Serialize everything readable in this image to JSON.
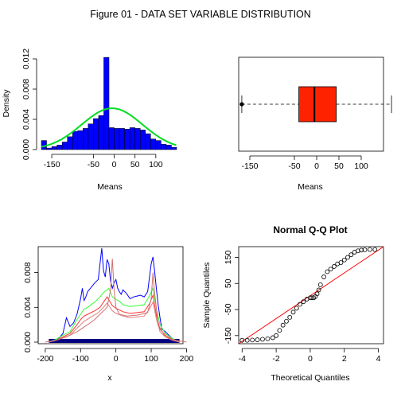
{
  "figure_title": "Figure 01 - DATA SET VARIABLE DISTRIBUTION",
  "chart_data": [
    {
      "type": "histogram",
      "xlabel": "Means",
      "ylabel": "Density",
      "xlim": [
        -175,
        150
      ],
      "ylim": [
        0,
        0.012
      ],
      "xticks": [
        -150,
        -50,
        0,
        50,
        100
      ],
      "yticks": [
        0,
        0.004,
        0.008,
        0.012
      ],
      "ytick_labels": [
        "0.000",
        "0.004",
        "0.008",
        "0.012"
      ],
      "bins": [
        {
          "x0": -175,
          "x1": -162.5,
          "density": 0.0012
        },
        {
          "x0": -162.5,
          "x1": -150,
          "density": 0.0002
        },
        {
          "x0": -150,
          "x1": -137.5,
          "density": 0.0004
        },
        {
          "x0": -137.5,
          "x1": -125,
          "density": 0.0006
        },
        {
          "x0": -125,
          "x1": -112.5,
          "density": 0.001
        },
        {
          "x0": -112.5,
          "x1": -100,
          "density": 0.0017
        },
        {
          "x0": -100,
          "x1": -87.5,
          "density": 0.0024
        },
        {
          "x0": -87.5,
          "x1": -75,
          "density": 0.0025
        },
        {
          "x0": -75,
          "x1": -62.5,
          "density": 0.0028
        },
        {
          "x0": -62.5,
          "x1": -50,
          "density": 0.0034
        },
        {
          "x0": -50,
          "x1": -37.5,
          "density": 0.0041
        },
        {
          "x0": -37.5,
          "x1": -25,
          "density": 0.0045
        },
        {
          "x0": -25,
          "x1": -12.5,
          "density": 0.0122
        },
        {
          "x0": -12.5,
          "x1": 0,
          "density": 0.0029
        },
        {
          "x0": 0,
          "x1": 12.5,
          "density": 0.0028
        },
        {
          "x0": 12.5,
          "x1": 25,
          "density": 0.0028
        },
        {
          "x0": 25,
          "x1": 37.5,
          "density": 0.0027
        },
        {
          "x0": 37.5,
          "x1": 50,
          "density": 0.0029
        },
        {
          "x0": 50,
          "x1": 62.5,
          "density": 0.0028
        },
        {
          "x0": 62.5,
          "x1": 75,
          "density": 0.0026
        },
        {
          "x0": 75,
          "x1": 87.5,
          "density": 0.0021
        },
        {
          "x0": 87.5,
          "x1": 100,
          "density": 0.0014
        },
        {
          "x0": 100,
          "x1": 112.5,
          "density": 0.0012
        },
        {
          "x0": 112.5,
          "x1": 125,
          "density": 0.0007
        },
        {
          "x0": 125,
          "x1": 137.5,
          "density": 0.0006
        },
        {
          "x0": 137.5,
          "x1": 150,
          "density": 0.0003
        }
      ],
      "normal_curve": {
        "mean": -5,
        "sd": 73
      },
      "colors": {
        "bars": "#0000ff",
        "curve": "#00dd22"
      }
    },
    {
      "type": "boxplot",
      "xlabel": "Means",
      "xlim": [
        -175,
        150
      ],
      "xticks": [
        -150,
        -50,
        0,
        50,
        100
      ],
      "whisker_low": -168,
      "q1": -40,
      "median": -5,
      "q3": 44,
      "whisker_high": 168,
      "outliers": [
        -168
      ],
      "colors": {
        "box": "#ff2200"
      }
    },
    {
      "type": "line",
      "xlabel": "x",
      "xlim": [
        -220,
        190
      ],
      "ylim": [
        0,
        0.0108
      ],
      "xticks": [
        -200,
        -100,
        0,
        100,
        200
      ],
      "yticks": [
        0,
        0.004,
        0.008
      ],
      "ytick_labels": [
        "0.000",
        "0.004",
        "0.008"
      ],
      "series": [
        {
          "color": "#0000ff",
          "x": [
            -190,
            -180,
            -170,
            -160,
            -150,
            -140,
            -130,
            -120,
            -110,
            -100,
            -95,
            -90,
            -85,
            -80,
            -70,
            -60,
            -50,
            -45,
            -40,
            -35,
            -30,
            -25,
            -20,
            -15,
            -10,
            -5,
            0,
            5,
            10,
            15,
            20,
            30,
            40,
            50,
            60,
            70,
            80,
            90,
            100,
            105,
            110,
            115,
            120,
            125,
            130,
            140,
            150,
            160,
            170,
            180
          ],
          "y": [
            0,
            0.0002,
            0.0003,
            0.0005,
            0.001,
            0.0028,
            0.0018,
            0.0022,
            0.0032,
            0.005,
            0.0062,
            0.0048,
            0.0052,
            0.0058,
            0.0063,
            0.0068,
            0.0072,
            0.009,
            0.0108,
            0.0082,
            0.0075,
            0.0095,
            0.009,
            0.007,
            0.0062,
            0.0068,
            0.0072,
            0.0062,
            0.0058,
            0.0055,
            0.006,
            0.0056,
            0.005,
            0.0052,
            0.0053,
            0.0054,
            0.0052,
            0.0058,
            0.009,
            0.0098,
            0.008,
            0.006,
            0.0042,
            0.0028,
            0.0015,
            0.0012,
            0.0008,
            0.0004,
            0.0002,
            0
          ]
        },
        {
          "color": "#33ff33",
          "x": [
            -190,
            -170,
            -150,
            -130,
            -110,
            -100,
            -90,
            -80,
            -60,
            -45,
            -35,
            -20,
            -10,
            0,
            10,
            20,
            40,
            60,
            80,
            95,
            105,
            115,
            125,
            140,
            160,
            180
          ],
          "y": [
            0,
            0.0003,
            0.0008,
            0.0012,
            0.0026,
            0.0032,
            0.0038,
            0.004,
            0.0046,
            0.0052,
            0.0057,
            0.0062,
            0.0052,
            0.0049,
            0.0047,
            0.0043,
            0.0041,
            0.0042,
            0.0043,
            0.0053,
            0.0062,
            0.0038,
            0.002,
            0.001,
            0.0004,
            0
          ]
        },
        {
          "color": "#ff3333",
          "x": [
            -190,
            -170,
            -150,
            -130,
            -110,
            -100,
            -90,
            -80,
            -60,
            -45,
            -35,
            -25,
            -10,
            0,
            10,
            20,
            40,
            60,
            80,
            95,
            105,
            115,
            125,
            140,
            160,
            180
          ],
          "y": [
            0,
            0.0002,
            0.0006,
            0.001,
            0.002,
            0.0026,
            0.003,
            0.0032,
            0.0036,
            0.004,
            0.0046,
            0.0052,
            0.0042,
            0.0039,
            0.0037,
            0.0035,
            0.0033,
            0.0034,
            0.0035,
            0.0044,
            0.0054,
            0.003,
            0.0015,
            0.0008,
            0.0003,
            0
          ]
        },
        {
          "color": "#e08080",
          "x": [
            -190,
            -170,
            -150,
            -130,
            -110,
            -90,
            -70,
            -50,
            -35,
            -25,
            -10,
            0,
            20,
            40,
            60,
            80,
            95,
            105,
            115,
            125,
            140,
            160,
            180
          ],
          "y": [
            0,
            0.0002,
            0.0005,
            0.0008,
            0.0016,
            0.0024,
            0.0029,
            0.0034,
            0.004,
            0.0045,
            0.0036,
            0.0033,
            0.003,
            0.0028,
            0.0029,
            0.003,
            0.0038,
            0.0046,
            0.0026,
            0.0012,
            0.0006,
            0.0002,
            0
          ]
        },
        {
          "color": "#d07070",
          "x": [
            -200,
            -170,
            -140,
            -110,
            -80,
            -60,
            -45,
            -35,
            -25,
            -15,
            -10,
            -5,
            0,
            10,
            30,
            60,
            90,
            100,
            105,
            110,
            120,
            140,
            170,
            200
          ],
          "y": [
            0,
            0.0002,
            0.0006,
            0.0012,
            0.002,
            0.0026,
            0.0032,
            0.0036,
            0.004,
            0.006,
            0.0096,
            0.006,
            0.004,
            0.0032,
            0.003,
            0.0031,
            0.0034,
            0.005,
            0.008,
            0.0055,
            0.002,
            0.0006,
            0.0002,
            0
          ]
        }
      ],
      "rug_color": "#000080"
    },
    {
      "type": "scatter",
      "title": "Normal Q-Q Plot",
      "xlabel": "Theoretical Quantiles",
      "ylabel": "Sample Quantiles",
      "xlim": [
        -4.2,
        4.3
      ],
      "ylim": [
        -175,
        185
      ],
      "xticks": [
        -4,
        -2,
        0,
        2,
        4
      ],
      "yticks": [
        -150,
        -50,
        50,
        150
      ],
      "ytick_labels": [
        "-150",
        "-50",
        "50",
        "150"
      ],
      "qq_line": {
        "x1": -4.2,
        "y1": -229,
        "x2": 4.3,
        "y2": 224
      },
      "points": {
        "x": [
          -4.0,
          -3.7,
          -3.4,
          -3.1,
          -2.8,
          -2.5,
          -2.2,
          -2.0,
          -1.8,
          -1.6,
          -1.4,
          -1.2,
          -1.0,
          -0.8,
          -0.6,
          -0.4,
          -0.2,
          0.0,
          0.1,
          0.2,
          0.3,
          0.4,
          0.5,
          0.6,
          0.8,
          1.0,
          1.2,
          1.4,
          1.6,
          1.8,
          2.0,
          2.2,
          2.4,
          2.6,
          2.8,
          3.0,
          3.2,
          3.5,
          3.8
        ],
        "y": [
          -168,
          -168,
          -167,
          -166,
          -164,
          -162,
          -158,
          -150,
          -130,
          -110,
          -95,
          -80,
          -60,
          -45,
          -30,
          -20,
          -10,
          -5,
          -5,
          -5,
          0,
          10,
          25,
          45,
          75,
          95,
          105,
          115,
          125,
          130,
          140,
          150,
          160,
          170,
          175,
          178,
          179,
          180,
          180
        ]
      },
      "colors": {
        "points": "#000000",
        "line": "#ff0000"
      }
    }
  ]
}
